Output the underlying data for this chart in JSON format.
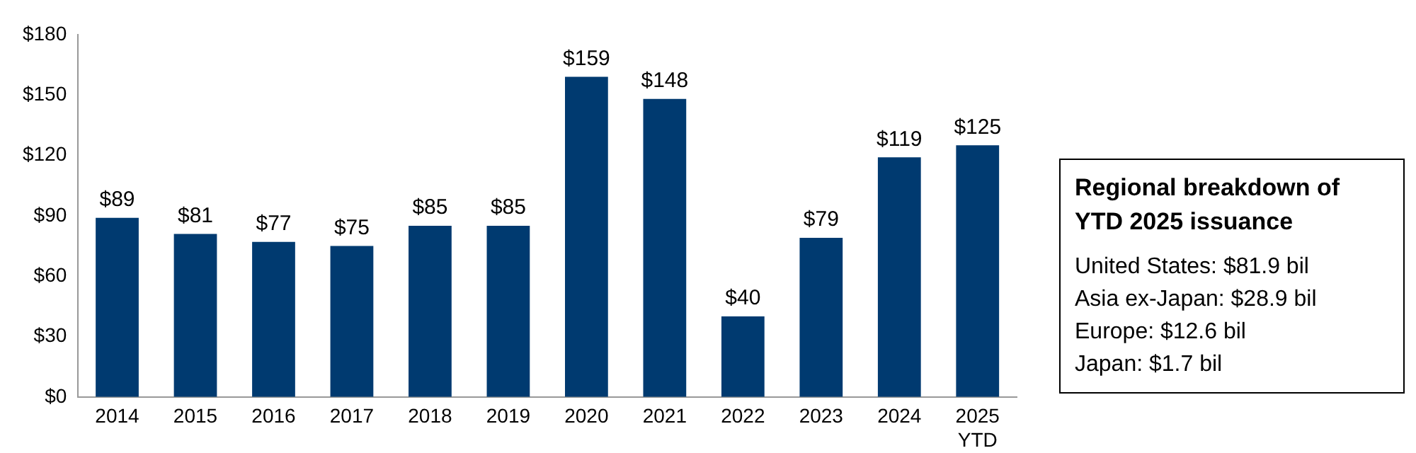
{
  "chart_data": [
    {
      "type": "bar",
      "categories": [
        "2014",
        "2015",
        "2016",
        "2017",
        "2018",
        "2019",
        "2020",
        "2021",
        "2022",
        "2023",
        "2024",
        "2025\nYTD"
      ],
      "values": [
        89,
        81,
        77,
        75,
        85,
        85,
        159,
        148,
        40,
        79,
        119,
        125
      ],
      "value_labels": [
        "$89",
        "$81",
        "$77",
        "$75",
        "$85",
        "$85",
        "$159",
        "$148",
        "$40",
        "$79",
        "$119",
        "$125"
      ],
      "color": "#003a70",
      "ylim": [
        0,
        180
      ],
      "yticks": [
        {
          "value": 0,
          "label": "$0"
        },
        {
          "value": 30,
          "label": "$30"
        },
        {
          "value": 60,
          "label": "$60"
        },
        {
          "value": 90,
          "label": "$90"
        },
        {
          "value": 120,
          "label": "$120"
        },
        {
          "value": 150,
          "label": "$150"
        },
        {
          "value": 180,
          "label": "$180"
        }
      ],
      "grid": false,
      "legend": false
    },
    {
      "type": "other",
      "title": "Regional breakdown of YTD 2025 issuance",
      "annotations": [
        "United States: $81.9 bil",
        "Asia ex-Japan: $28.9 bil",
        "Europe: $12.6 bil",
        "Japan: $1.7 bil"
      ]
    }
  ]
}
